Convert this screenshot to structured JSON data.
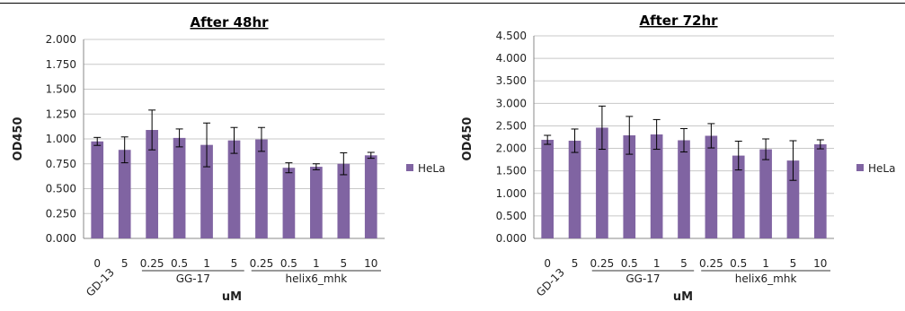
{
  "chart_data": [
    {
      "type": "bar",
      "title": "After 48hr",
      "ylabel": "OD450",
      "xlabel": "uM",
      "ylim": [
        0,
        2.0
      ],
      "yticks": [
        "0.000",
        "0.250",
        "0.500",
        "0.750",
        "1.000",
        "1.250",
        "1.500",
        "1.750",
        "2.000"
      ],
      "categories": [
        "0",
        "5",
        "0.25",
        "0.5",
        "1",
        "5",
        "0.25",
        "0.5",
        "1",
        "5",
        "10"
      ],
      "groups": [
        "GD-13",
        "GG-17",
        "helix6_mhk"
      ],
      "series": [
        {
          "name": "HeLa",
          "color": "#8064A2",
          "values": [
            0.975,
            0.89,
            1.09,
            1.01,
            0.94,
            0.985,
            0.995,
            0.71,
            0.72,
            0.75,
            0.835
          ],
          "errors": [
            0.04,
            0.13,
            0.2,
            0.09,
            0.22,
            0.13,
            0.12,
            0.05,
            0.03,
            0.11,
            0.03
          ]
        }
      ]
    },
    {
      "type": "bar",
      "title": "After 72hr",
      "ylabel": "OD450",
      "xlabel": "uM",
      "ylim": [
        0,
        4.5
      ],
      "yticks": [
        "0.000",
        "0.500",
        "1.000",
        "1.500",
        "2.000",
        "2.500",
        "3.000",
        "3.500",
        "4.000",
        "4.500"
      ],
      "categories": [
        "0",
        "5",
        "0.25",
        "0.5",
        "1",
        "5",
        "0.25",
        "0.5",
        "1",
        "5",
        "10"
      ],
      "groups": [
        "GD-13",
        "GG-17",
        "helix6_mhk"
      ],
      "series": [
        {
          "name": "HeLa",
          "color": "#8064A2",
          "values": [
            2.19,
            2.17,
            2.46,
            2.29,
            2.31,
            2.18,
            2.28,
            1.84,
            1.98,
            1.73,
            2.09
          ],
          "errors": [
            0.1,
            0.26,
            0.48,
            0.42,
            0.33,
            0.26,
            0.27,
            0.32,
            0.23,
            0.44,
            0.1
          ]
        }
      ]
    }
  ]
}
